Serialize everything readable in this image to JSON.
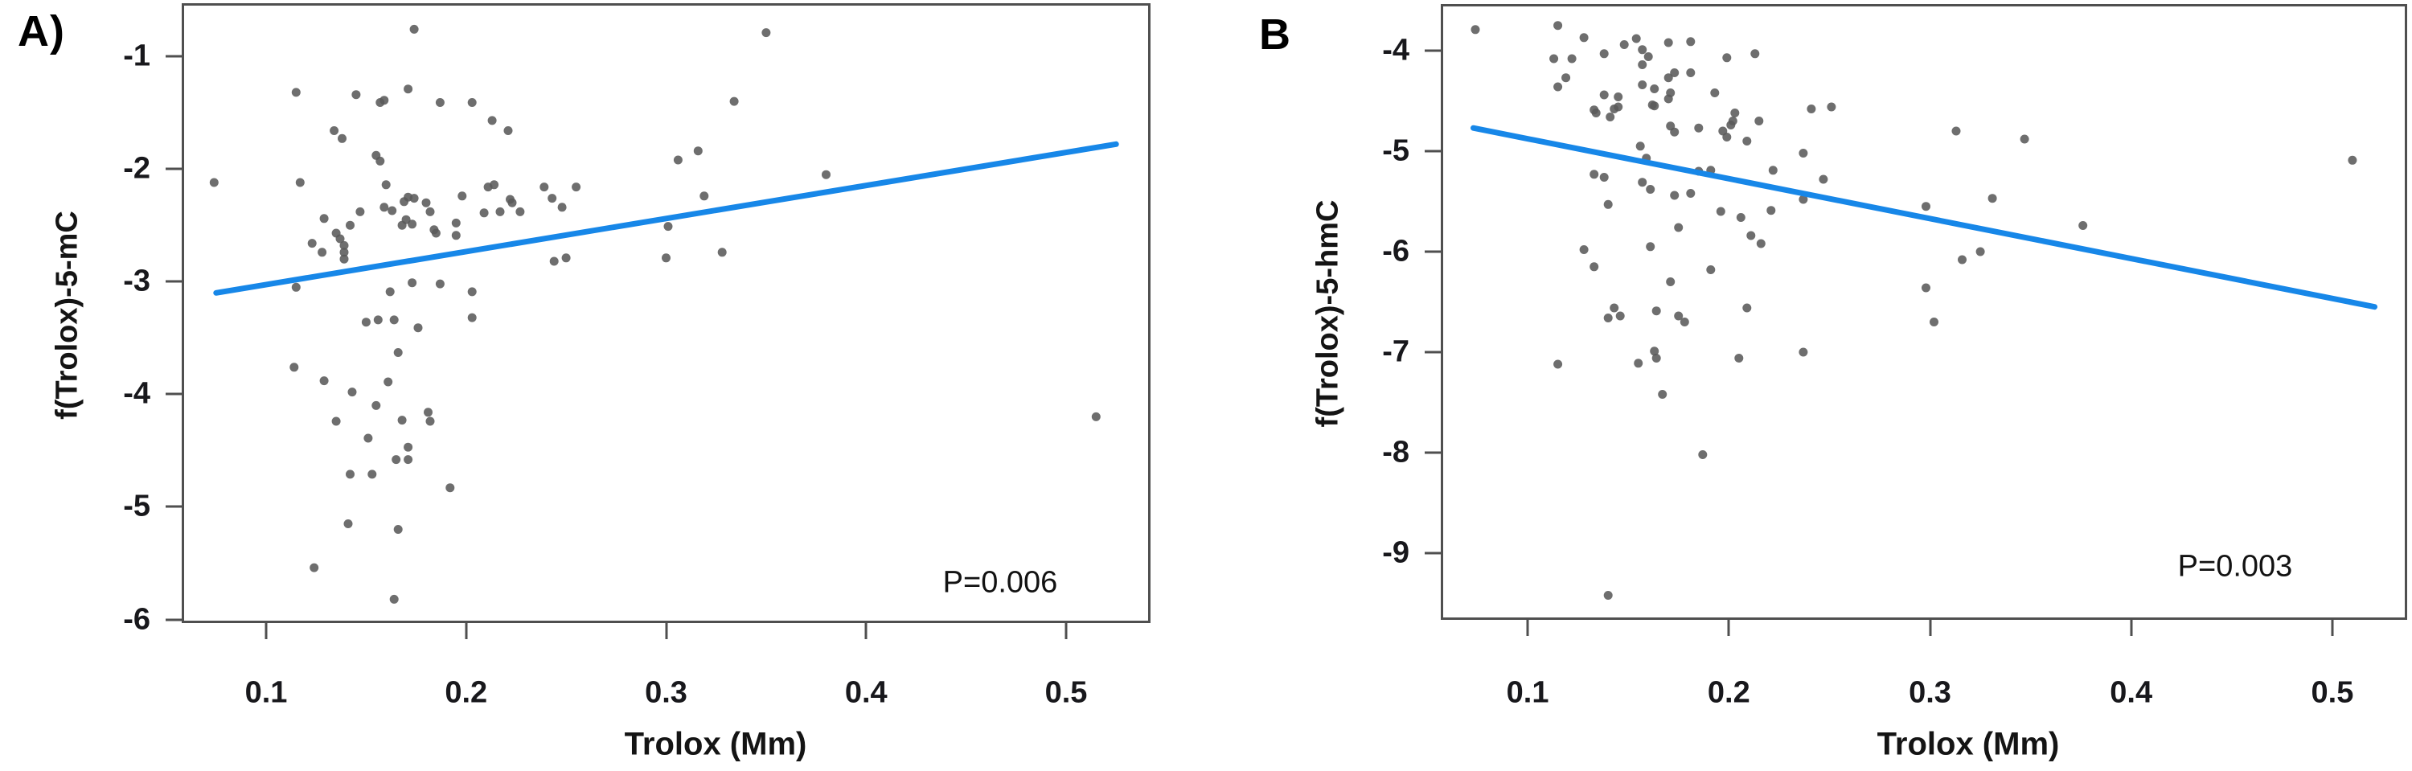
{
  "figure": {
    "background_color": "#ffffff",
    "panel_a_letter": "A)",
    "panel_b_letter": "B"
  },
  "chart_data": [
    {
      "type": "scatter",
      "panel_label": "A)",
      "xlabel": "Trolox (Mm)",
      "ylabel": "f(Trolox)-5-mC",
      "annotation": "P=0.006",
      "x_ticks": [
        0.1,
        0.2,
        0.3,
        0.4,
        0.5
      ],
      "y_ticks": [
        -1,
        -2,
        -3,
        -4,
        -5,
        -6
      ],
      "xlim": [
        0.059,
        0.541
      ],
      "ylim": [
        -6.01,
        -0.55
      ],
      "grid": false,
      "legend": "none",
      "point_color": "#5a5a5a",
      "line_color": "#1787e8",
      "border_color": "#4f4f4f",
      "trend_line": {
        "x": [
          0.075,
          0.525
        ],
        "y": [
          -3.1,
          -1.78
        ]
      },
      "points": [
        [
          0.174,
          -0.76
        ],
        [
          0.115,
          -1.32
        ],
        [
          0.145,
          -1.34
        ],
        [
          0.157,
          -1.41
        ],
        [
          0.159,
          -1.39
        ],
        [
          0.171,
          -1.29
        ],
        [
          0.187,
          -1.41
        ],
        [
          0.203,
          -1.41
        ],
        [
          0.213,
          -1.57
        ],
        [
          0.221,
          -1.66
        ],
        [
          0.134,
          -1.66
        ],
        [
          0.138,
          -1.73
        ],
        [
          0.155,
          -1.88
        ],
        [
          0.157,
          -1.93
        ],
        [
          0.074,
          -2.12
        ],
        [
          0.117,
          -2.12
        ],
        [
          0.16,
          -2.14
        ],
        [
          0.171,
          -2.25
        ],
        [
          0.169,
          -2.29
        ],
        [
          0.174,
          -2.26
        ],
        [
          0.18,
          -2.3
        ],
        [
          0.159,
          -2.34
        ],
        [
          0.163,
          -2.37
        ],
        [
          0.182,
          -2.38
        ],
        [
          0.17,
          -2.45
        ],
        [
          0.173,
          -2.49
        ],
        [
          0.168,
          -2.5
        ],
        [
          0.147,
          -2.38
        ],
        [
          0.129,
          -2.44
        ],
        [
          0.123,
          -2.66
        ],
        [
          0.128,
          -2.74
        ],
        [
          0.135,
          -2.57
        ],
        [
          0.137,
          -2.62
        ],
        [
          0.139,
          -2.68
        ],
        [
          0.139,
          -2.74
        ],
        [
          0.139,
          -2.8
        ],
        [
          0.142,
          -2.5
        ],
        [
          0.184,
          -2.54
        ],
        [
          0.185,
          -2.57
        ],
        [
          0.195,
          -2.59
        ],
        [
          0.195,
          -2.48
        ],
        [
          0.209,
          -2.39
        ],
        [
          0.217,
          -2.38
        ],
        [
          0.222,
          -2.27
        ],
        [
          0.223,
          -2.3
        ],
        [
          0.239,
          -2.16
        ],
        [
          0.243,
          -2.26
        ],
        [
          0.248,
          -2.34
        ],
        [
          0.255,
          -2.16
        ],
        [
          0.211,
          -2.16
        ],
        [
          0.198,
          -2.24
        ],
        [
          0.214,
          -2.14
        ],
        [
          0.227,
          -2.38
        ],
        [
          0.25,
          -2.79
        ],
        [
          0.244,
          -2.82
        ],
        [
          0.187,
          -3.02
        ],
        [
          0.35,
          -0.79
        ],
        [
          0.334,
          -1.4
        ],
        [
          0.316,
          -1.84
        ],
        [
          0.306,
          -1.92
        ],
        [
          0.38,
          -2.05
        ],
        [
          0.319,
          -2.24
        ],
        [
          0.301,
          -2.51
        ],
        [
          0.328,
          -2.74
        ],
        [
          0.3,
          -2.79
        ],
        [
          0.115,
          -3.05
        ],
        [
          0.162,
          -3.09
        ],
        [
          0.173,
          -3.01
        ],
        [
          0.203,
          -3.09
        ],
        [
          0.15,
          -3.36
        ],
        [
          0.156,
          -3.34
        ],
        [
          0.164,
          -3.34
        ],
        [
          0.176,
          -3.41
        ],
        [
          0.203,
          -3.32
        ],
        [
          0.166,
          -3.63
        ],
        [
          0.114,
          -3.76
        ],
        [
          0.129,
          -3.88
        ],
        [
          0.161,
          -3.89
        ],
        [
          0.143,
          -3.98
        ],
        [
          0.155,
          -4.1
        ],
        [
          0.135,
          -4.24
        ],
        [
          0.168,
          -4.23
        ],
        [
          0.181,
          -4.16
        ],
        [
          0.182,
          -4.24
        ],
        [
          0.151,
          -4.39
        ],
        [
          0.171,
          -4.47
        ],
        [
          0.165,
          -4.58
        ],
        [
          0.171,
          -4.58
        ],
        [
          0.142,
          -4.71
        ],
        [
          0.153,
          -4.71
        ],
        [
          0.192,
          -4.83
        ],
        [
          0.141,
          -5.15
        ],
        [
          0.166,
          -5.2
        ],
        [
          0.124,
          -5.54
        ],
        [
          0.164,
          -5.82
        ],
        [
          0.515,
          -4.2
        ]
      ]
    },
    {
      "type": "scatter",
      "panel_label": "B",
      "xlabel": "Trolox (Mm)",
      "ylabel": "f(Trolox)-5-hmC",
      "annotation": "P=0.003",
      "x_ticks": [
        0.1,
        0.2,
        0.3,
        0.4,
        0.5
      ],
      "y_ticks": [
        -4,
        -5,
        -6,
        -7,
        -8,
        -9
      ],
      "xlim": [
        0.058,
        0.536
      ],
      "ylim": [
        -9.64,
        -3.56
      ],
      "grid": false,
      "legend": "none",
      "point_color": "#5a5a5a",
      "line_color": "#1787e8",
      "border_color": "#4f4f4f",
      "trend_line": {
        "x": [
          0.073,
          0.521
        ],
        "y": [
          -4.77,
          -6.55
        ]
      },
      "points": [
        [
          0.074,
          -3.79
        ],
        [
          0.115,
          -3.75
        ],
        [
          0.128,
          -3.87
        ],
        [
          0.154,
          -3.88
        ],
        [
          0.148,
          -3.94
        ],
        [
          0.17,
          -3.92
        ],
        [
          0.181,
          -3.91
        ],
        [
          0.138,
          -4.03
        ],
        [
          0.157,
          -3.99
        ],
        [
          0.16,
          -4.06
        ],
        [
          0.113,
          -4.08
        ],
        [
          0.122,
          -4.08
        ],
        [
          0.199,
          -4.07
        ],
        [
          0.213,
          -4.03
        ],
        [
          0.157,
          -4.14
        ],
        [
          0.119,
          -4.27
        ],
        [
          0.17,
          -4.27
        ],
        [
          0.173,
          -4.22
        ],
        [
          0.181,
          -4.22
        ],
        [
          0.115,
          -4.36
        ],
        [
          0.157,
          -4.34
        ],
        [
          0.163,
          -4.38
        ],
        [
          0.171,
          -4.42
        ],
        [
          0.17,
          -4.48
        ],
        [
          0.138,
          -4.44
        ],
        [
          0.145,
          -4.46
        ],
        [
          0.193,
          -4.42
        ],
        [
          0.133,
          -4.59
        ],
        [
          0.134,
          -4.62
        ],
        [
          0.141,
          -4.66
        ],
        [
          0.143,
          -4.58
        ],
        [
          0.145,
          -4.56
        ],
        [
          0.162,
          -4.54
        ],
        [
          0.163,
          -4.55
        ],
        [
          0.203,
          -4.62
        ],
        [
          0.202,
          -4.7
        ],
        [
          0.201,
          -4.74
        ],
        [
          0.215,
          -4.7
        ],
        [
          0.241,
          -4.58
        ],
        [
          0.251,
          -4.56
        ],
        [
          0.171,
          -4.75
        ],
        [
          0.173,
          -4.81
        ],
        [
          0.185,
          -4.77
        ],
        [
          0.197,
          -4.8
        ],
        [
          0.199,
          -4.86
        ],
        [
          0.209,
          -4.9
        ],
        [
          0.237,
          -5.02
        ],
        [
          0.156,
          -4.95
        ],
        [
          0.159,
          -5.07
        ],
        [
          0.133,
          -5.23
        ],
        [
          0.138,
          -5.26
        ],
        [
          0.157,
          -5.31
        ],
        [
          0.161,
          -5.38
        ],
        [
          0.185,
          -5.2
        ],
        [
          0.191,
          -5.19
        ],
        [
          0.173,
          -5.44
        ],
        [
          0.181,
          -5.42
        ],
        [
          0.14,
          -5.53
        ],
        [
          0.196,
          -5.6
        ],
        [
          0.206,
          -5.66
        ],
        [
          0.175,
          -5.76
        ],
        [
          0.211,
          -5.84
        ],
        [
          0.216,
          -5.92
        ],
        [
          0.128,
          -5.98
        ],
        [
          0.133,
          -6.15
        ],
        [
          0.161,
          -5.95
        ],
        [
          0.191,
          -6.18
        ],
        [
          0.171,
          -6.3
        ],
        [
          0.222,
          -5.19
        ],
        [
          0.221,
          -5.59
        ],
        [
          0.237,
          -5.48
        ],
        [
          0.247,
          -5.28
        ],
        [
          0.313,
          -4.8
        ],
        [
          0.347,
          -4.88
        ],
        [
          0.51,
          -5.09
        ],
        [
          0.331,
          -5.47
        ],
        [
          0.298,
          -5.55
        ],
        [
          0.376,
          -5.74
        ],
        [
          0.325,
          -6.0
        ],
        [
          0.316,
          -6.08
        ],
        [
          0.298,
          -6.36
        ],
        [
          0.302,
          -6.7
        ],
        [
          0.143,
          -6.56
        ],
        [
          0.164,
          -6.59
        ],
        [
          0.14,
          -6.66
        ],
        [
          0.146,
          -6.64
        ],
        [
          0.175,
          -6.64
        ],
        [
          0.178,
          -6.7
        ],
        [
          0.209,
          -6.56
        ],
        [
          0.115,
          -7.12
        ],
        [
          0.155,
          -7.11
        ],
        [
          0.163,
          -6.99
        ],
        [
          0.164,
          -7.06
        ],
        [
          0.205,
          -7.06
        ],
        [
          0.237,
          -7.0
        ],
        [
          0.167,
          -7.42
        ],
        [
          0.187,
          -8.02
        ],
        [
          0.14,
          -9.42
        ]
      ]
    }
  ]
}
